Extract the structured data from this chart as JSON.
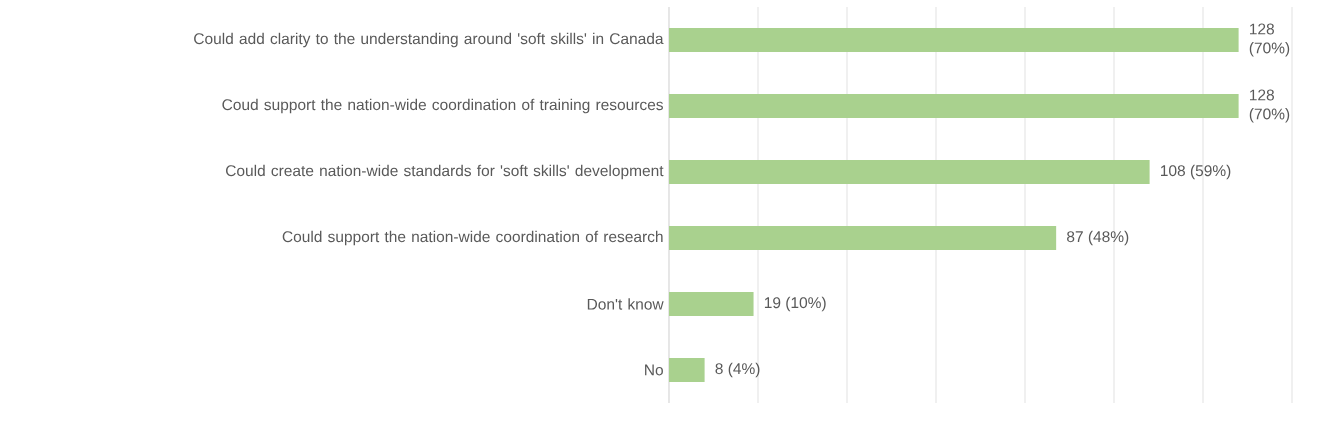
{
  "chart_data": {
    "type": "bar",
    "orientation": "horizontal",
    "categories": [
      "Could add clarity to the understanding around 'soft skills' in Canada",
      "Coud support the nation-wide coordination of training resources",
      "Could create nation-wide standards for 'soft skills' development",
      "Could support the nation-wide coordination of research",
      "Don't know",
      "No"
    ],
    "values": [
      128,
      128,
      108,
      87,
      19,
      8
    ],
    "value_labels": [
      "128 (70%)",
      "128 (70%)",
      "108 (59%)",
      "87 (48%)",
      "19 (10%)",
      "8 (4%)"
    ],
    "color": "#a9d18e",
    "xlim": [
      0,
      140
    ],
    "xticks": [
      {
        "value": 0,
        "label": null
      },
      {
        "value": 20,
        "label": null
      },
      {
        "value": 40,
        "label": null
      },
      {
        "value": 60,
        "label": null
      },
      {
        "value": 80,
        "label": null
      },
      {
        "value": 100,
        "label": null
      },
      {
        "value": 120,
        "label": null
      },
      {
        "value": 140,
        "label": null
      }
    ],
    "grid": "x",
    "tick_labels": "y"
  }
}
